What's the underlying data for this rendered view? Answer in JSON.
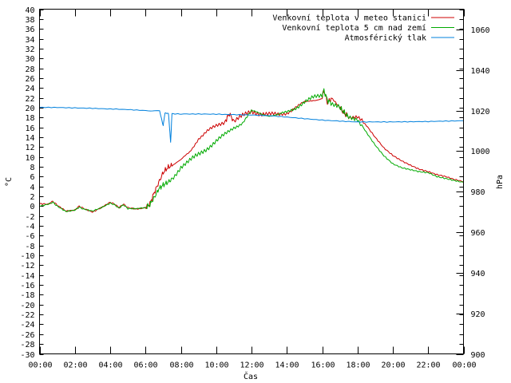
{
  "chart_data": {
    "type": "line",
    "xlabel": "Čas",
    "ylabel_left": "°C",
    "ylabel_right": "hPa",
    "x_ticks": [
      "00:00",
      "02:00",
      "04:00",
      "06:00",
      "08:00",
      "10:00",
      "12:00",
      "14:00",
      "16:00",
      "18:00",
      "20:00",
      "22:00",
      "00:00"
    ],
    "x_range_hours": [
      0,
      24
    ],
    "y_left_range": [
      -30,
      40
    ],
    "y_left_step": 2,
    "y_right_range": [
      900,
      1070
    ],
    "y_right_ticks": [
      900,
      920,
      940,
      960,
      980,
      1000,
      1020,
      1040,
      1060
    ],
    "grid": false,
    "legend_placement": "top-right",
    "series": [
      {
        "name": "Venkovní teplota v meteo stanici",
        "axis": "left",
        "color": "#cc0000",
        "points": [
          [
            0,
            0.5
          ],
          [
            0.5,
            0.4
          ],
          [
            0.75,
            1.0
          ],
          [
            1,
            0.2
          ],
          [
            1.5,
            -1.0
          ],
          [
            2,
            -0.8
          ],
          [
            2.25,
            0
          ],
          [
            2.5,
            -0.5
          ],
          [
            3,
            -1.2
          ],
          [
            3.5,
            -0.3
          ],
          [
            4,
            0.8
          ],
          [
            4.25,
            0.4
          ],
          [
            4.5,
            -0.3
          ],
          [
            4.75,
            0.4
          ],
          [
            5,
            -0.3
          ],
          [
            5.5,
            -0.6
          ],
          [
            6,
            -0.3
          ],
          [
            6.25,
            0.5
          ],
          [
            6.5,
            2.8
          ],
          [
            6.75,
            4.8
          ],
          [
            7,
            6.8
          ],
          [
            7.25,
            7.8
          ],
          [
            7.5,
            8.3
          ],
          [
            8,
            9.2
          ],
          [
            8.5,
            11.0
          ],
          [
            9,
            13.8
          ],
          [
            9.5,
            15.2
          ],
          [
            10,
            16.2
          ],
          [
            10.5,
            17.2
          ],
          [
            10.75,
            18.8
          ],
          [
            11,
            17.2
          ],
          [
            11.5,
            18.3
          ],
          [
            12,
            19.3
          ],
          [
            12.5,
            18.8
          ],
          [
            13,
            18.6
          ],
          [
            13.5,
            18.6
          ],
          [
            14,
            19.0
          ],
          [
            14.5,
            20.0
          ],
          [
            15,
            21.0
          ],
          [
            15.5,
            21.6
          ],
          [
            16,
            22.0
          ],
          [
            16.1,
            23.5
          ],
          [
            16.3,
            21.0
          ],
          [
            16.5,
            21.8
          ],
          [
            17,
            20.0
          ],
          [
            17.25,
            18.8
          ],
          [
            17.5,
            18.2
          ],
          [
            18,
            18.0
          ],
          [
            18.5,
            16.4
          ],
          [
            19,
            14.0
          ],
          [
            19.5,
            11.8
          ],
          [
            20,
            10.3
          ],
          [
            20.5,
            9.2
          ],
          [
            21,
            8.3
          ],
          [
            21.5,
            7.5
          ],
          [
            22,
            7.0
          ],
          [
            22.5,
            6.4
          ],
          [
            23,
            6.0
          ],
          [
            23.5,
            5.4
          ],
          [
            24,
            5.0
          ]
        ]
      },
      {
        "name": "Venkovní teplota 5 cm nad zemí",
        "axis": "left",
        "color": "#00aa00",
        "points": [
          [
            0,
            0.0
          ],
          [
            0.5,
            0.4
          ],
          [
            0.75,
            0.8
          ],
          [
            1,
            0.0
          ],
          [
            1.5,
            -1.1
          ],
          [
            2,
            -0.8
          ],
          [
            2.25,
            -0.2
          ],
          [
            2.5,
            -0.6
          ],
          [
            3,
            -1.0
          ],
          [
            3.5,
            -0.3
          ],
          [
            4,
            0.6
          ],
          [
            4.25,
            0.3
          ],
          [
            4.5,
            -0.4
          ],
          [
            4.75,
            0.3
          ],
          [
            5,
            -0.5
          ],
          [
            5.5,
            -0.5
          ],
          [
            6,
            -0.3
          ],
          [
            6.25,
            0.3
          ],
          [
            6.5,
            1.8
          ],
          [
            6.75,
            3.5
          ],
          [
            7,
            4.3
          ],
          [
            7.25,
            4.8
          ],
          [
            7.5,
            5.5
          ],
          [
            8,
            8.0
          ],
          [
            8.5,
            9.2
          ],
          [
            9,
            10.5
          ],
          [
            9.5,
            11.8
          ],
          [
            10,
            13.2
          ],
          [
            10.5,
            14.5
          ],
          [
            11,
            16.0
          ],
          [
            11.5,
            17.0
          ],
          [
            12,
            19.2
          ],
          [
            12.5,
            18.8
          ],
          [
            13,
            18.5
          ],
          [
            13.5,
            18.5
          ],
          [
            14,
            19.0
          ],
          [
            14.5,
            20.0
          ],
          [
            15,
            21.2
          ],
          [
            15.5,
            22.0
          ],
          [
            16,
            22.5
          ],
          [
            16.1,
            23.5
          ],
          [
            16.3,
            21.5
          ],
          [
            16.5,
            21.0
          ],
          [
            17,
            20.0
          ],
          [
            17.25,
            19.0
          ],
          [
            17.5,
            18.0
          ],
          [
            18,
            17.8
          ],
          [
            18.5,
            15.0
          ],
          [
            19,
            12.4
          ],
          [
            19.5,
            10.2
          ],
          [
            20,
            8.6
          ],
          [
            20.5,
            7.8
          ],
          [
            21,
            7.4
          ],
          [
            21.5,
            7.0
          ],
          [
            22,
            6.8
          ],
          [
            22.5,
            6.0
          ],
          [
            23,
            5.6
          ],
          [
            23.5,
            5.2
          ],
          [
            24,
            4.8
          ]
        ]
      },
      {
        "name": "Atmosférický tlak",
        "axis": "right",
        "color": "#0080dd",
        "points": [
          [
            0,
            1021.6
          ],
          [
            1,
            1021.5
          ],
          [
            2,
            1021.3
          ],
          [
            3,
            1021.1
          ],
          [
            4,
            1020.8
          ],
          [
            5,
            1020.5
          ],
          [
            6,
            1020.0
          ],
          [
            6.8,
            1019.8
          ],
          [
            7.0,
            1012.5
          ],
          [
            7.1,
            1018.8
          ],
          [
            7.3,
            1018.5
          ],
          [
            7.42,
            1004.5
          ],
          [
            7.5,
            1018.4
          ],
          [
            8,
            1018.3
          ],
          [
            9,
            1018.3
          ],
          [
            10,
            1018.2
          ],
          [
            11,
            1018.0
          ],
          [
            12,
            1017.8
          ],
          [
            13,
            1017.5
          ],
          [
            14,
            1016.8
          ],
          [
            15,
            1016.0
          ],
          [
            16,
            1015.3
          ],
          [
            17,
            1014.8
          ],
          [
            18,
            1014.4
          ],
          [
            19,
            1014.4
          ],
          [
            20,
            1014.4
          ],
          [
            21,
            1014.5
          ],
          [
            22,
            1014.6
          ],
          [
            23,
            1014.8
          ],
          [
            24,
            1015.0
          ]
        ]
      }
    ]
  }
}
